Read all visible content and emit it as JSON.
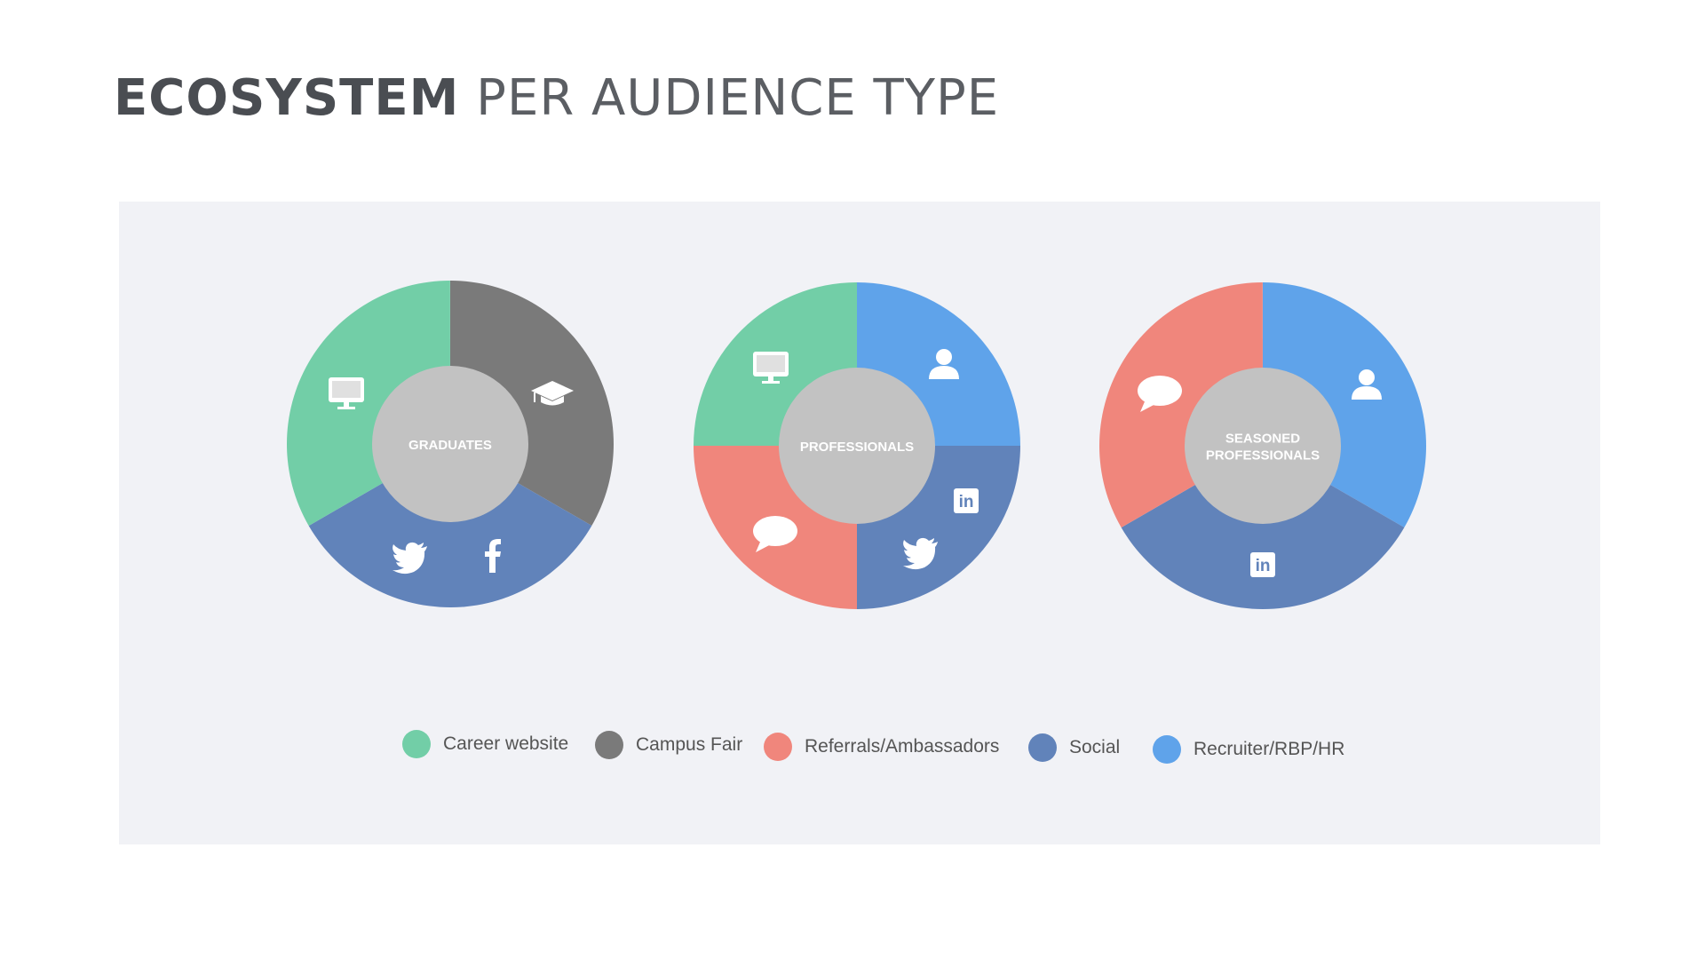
{
  "title": {
    "bold": "ECOSYSTEM",
    "light": "PER AUDIENCE TYPE"
  },
  "colors": {
    "Career website": "#72cea7",
    "Campus Fair": "#7a7a7a",
    "Referrals/Ambassadors": "#f0867c",
    "Social": "#6183ba",
    "Recruiter/RBP/HR": "#5fa3ea",
    "center": "#c2c2c2"
  },
  "legend": [
    {
      "label": "Career website",
      "color": "#72cea7"
    },
    {
      "label": "Campus Fair",
      "color": "#7a7a7a"
    },
    {
      "label": "Referrals/Ambassadors",
      "color": "#f0867c"
    },
    {
      "label": "Social",
      "color": "#6183ba"
    },
    {
      "label": "Recruiter/RBP/HR",
      "color": "#5fa3ea"
    }
  ],
  "chart_data": [
    {
      "type": "pie",
      "center_label": [
        "GRADUATES"
      ],
      "slices": [
        {
          "category": "Campus Fair",
          "value": 0.3333,
          "icons": [
            "graduation-cap-icon"
          ]
        },
        {
          "category": "Social",
          "value": 0.3333,
          "icons": [
            "facebook-icon",
            "twitter-icon"
          ]
        },
        {
          "category": "Career website",
          "value": 0.3333,
          "icons": [
            "monitor-icon"
          ]
        }
      ]
    },
    {
      "type": "pie",
      "center_label": [
        "PROFESSIONALS"
      ],
      "slices": [
        {
          "category": "Recruiter/RBP/HR",
          "value": 0.25,
          "icons": [
            "person-icon"
          ]
        },
        {
          "category": "Social",
          "value": 0.25,
          "icons": [
            "linkedin-icon",
            "twitter-icon"
          ]
        },
        {
          "category": "Referrals/Ambassadors",
          "value": 0.25,
          "icons": [
            "speech-bubble-icon"
          ]
        },
        {
          "category": "Career website",
          "value": 0.25,
          "icons": [
            "monitor-icon"
          ]
        }
      ]
    },
    {
      "type": "pie",
      "center_label": [
        "SEASONED",
        "PROFESSIONALS"
      ],
      "slices": [
        {
          "category": "Recruiter/RBP/HR",
          "value": 0.3333,
          "icons": [
            "person-icon"
          ]
        },
        {
          "category": "Social",
          "value": 0.3333,
          "icons": [
            "linkedin-icon"
          ]
        },
        {
          "category": "Referrals/Ambassadors",
          "value": 0.3333,
          "icons": [
            "speech-bubble-icon"
          ]
        }
      ]
    }
  ]
}
